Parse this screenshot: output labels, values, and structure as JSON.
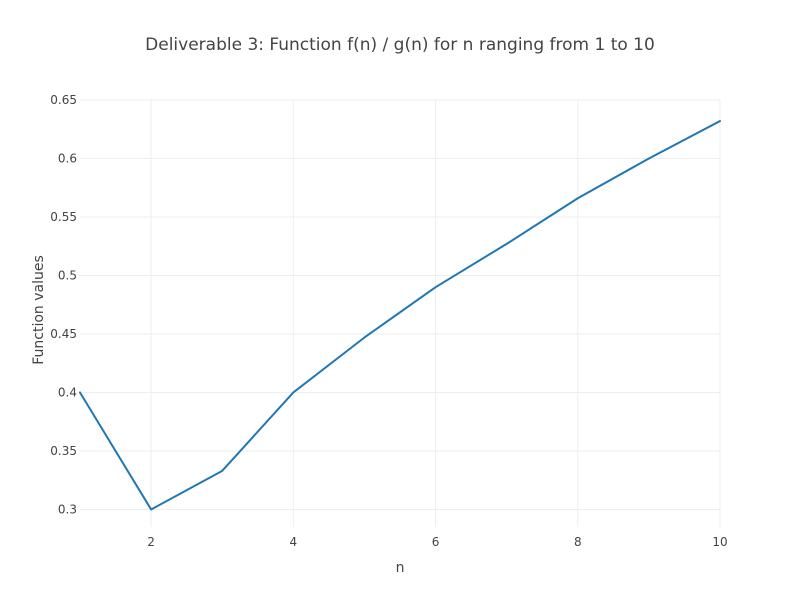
{
  "chart_data": {
    "type": "line",
    "title": "Deliverable 3: Function f(n) / g(n) for n ranging from 1 to 10",
    "xlabel": "n",
    "ylabel": "Function values",
    "xlim": [
      1,
      10
    ],
    "ylim": [
      0.285,
      0.65
    ],
    "x_ticks": [
      2,
      4,
      6,
      8,
      10
    ],
    "y_ticks": [
      0.3,
      0.35,
      0.4,
      0.45,
      0.5,
      0.55,
      0.6,
      0.65
    ],
    "grid": true,
    "legend": "none",
    "series": [
      {
        "color": "#1f77b4",
        "x": [
          1,
          2,
          3,
          4,
          5,
          6,
          7,
          8,
          9,
          10
        ],
        "y": [
          0.4,
          0.3,
          0.333,
          0.4,
          0.447,
          0.49,
          0.527,
          0.566,
          0.6,
          0.632
        ]
      }
    ]
  }
}
